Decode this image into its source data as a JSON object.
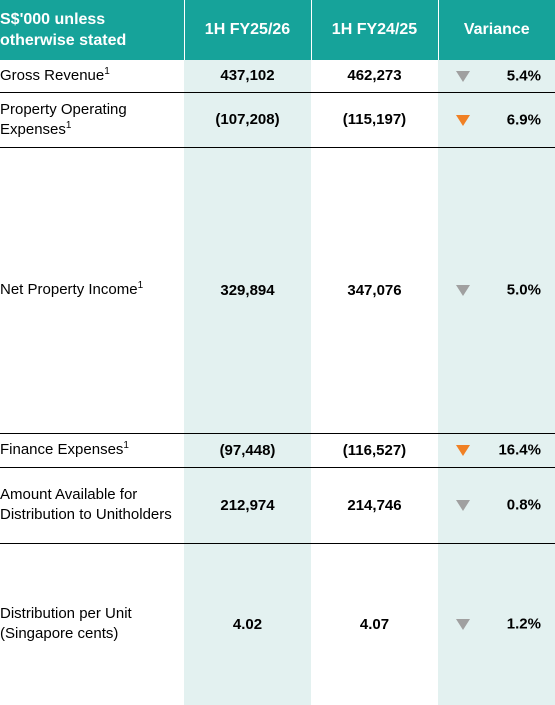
{
  "header": {
    "label_col": "S$'000 unless otherwise stated",
    "col_current": "1H FY25/26",
    "col_prior": "1H FY24/25",
    "col_variance": "Variance"
  },
  "rows": [
    {
      "label": "Gross Revenue",
      "footnote": "1",
      "current": "437,102",
      "prior": "462,273",
      "variance": "5.4%",
      "direction": "down",
      "arrow_color": "#a0a0a0"
    },
    {
      "label": "Property Operating Expenses",
      "footnote": "1",
      "current": "(107,208)",
      "prior": "(115,197)",
      "variance": "6.9%",
      "direction": "down",
      "arrow_color": "#f08024"
    },
    {
      "label": "Net Property Income",
      "footnote": "1",
      "current": "329,894",
      "prior": "347,076",
      "variance": "5.0%",
      "direction": "down",
      "arrow_color": "#a0a0a0"
    },
    {
      "label": "Finance Expenses",
      "footnote": "1",
      "current": "(97,448)",
      "prior": "(116,527)",
      "variance": "16.4%",
      "direction": "down",
      "arrow_color": "#f08024"
    },
    {
      "label": "Amount Available for Distribution to Unitholders",
      "footnote": "",
      "current": "212,974",
      "prior": "214,746",
      "variance": "0.8%",
      "direction": "down",
      "arrow_color": "#a0a0a0"
    },
    {
      "label": "Distribution per Unit (Singapore cents)",
      "footnote": "",
      "current": "4.02",
      "prior": "4.07",
      "variance": "1.2%",
      "direction": "down",
      "arrow_color": "#a0a0a0"
    }
  ],
  "colors": {
    "header_bg": "#16a39a",
    "highlight_bg": "#e3f1f0",
    "arrow_grey": "#a0a0a0",
    "arrow_orange": "#f08024"
  }
}
